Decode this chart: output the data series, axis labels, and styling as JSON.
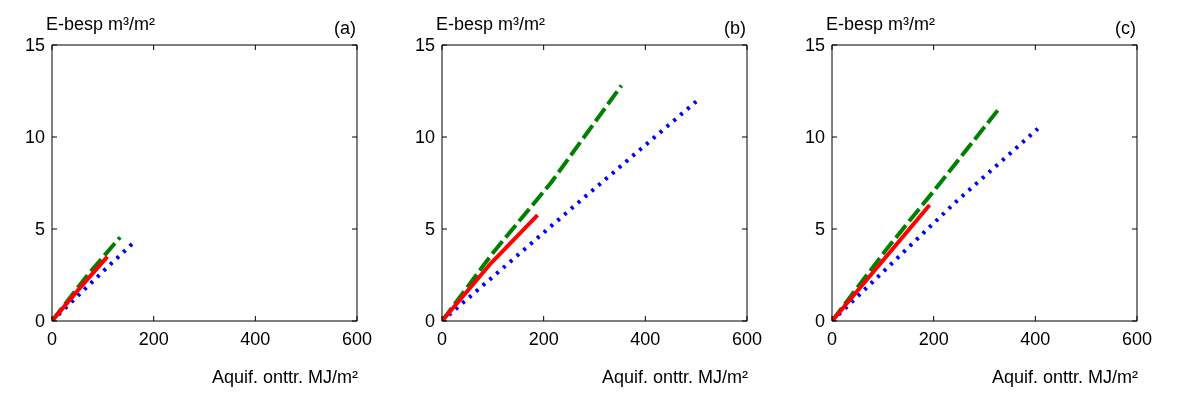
{
  "chart_data": [
    {
      "type": "line",
      "title": "(a)",
      "xlabel": "Aquif. onttr. MJ/m²",
      "ylabel": "E-besp m³/m²",
      "xlim": [
        0,
        600
      ],
      "ylim": [
        0,
        15
      ],
      "xticks": [
        0,
        200,
        400,
        600
      ],
      "yticks": [
        0,
        5,
        10,
        15
      ],
      "series": [
        {
          "color": "#0000ff",
          "line_style": "dotted",
          "x": [
            0,
            108,
            162
          ],
          "values": [
            0,
            2.9,
            4.3
          ]
        },
        {
          "color": "#008000",
          "line_style": "dashed",
          "x": [
            0,
            70,
            134
          ],
          "values": [
            0,
            2.5,
            4.55
          ]
        },
        {
          "color": "#ff0000",
          "line_style": "solid",
          "x": [
            0,
            55,
            109
          ],
          "values": [
            0,
            1.8,
            3.5
          ]
        }
      ]
    },
    {
      "type": "line",
      "title": "(b)",
      "xlabel": "Aquif. onttr. MJ/m²",
      "ylabel": "E-besp m³/m²",
      "xlim": [
        0,
        600
      ],
      "ylim": [
        0,
        15
      ],
      "xticks": [
        0,
        200,
        400,
        600
      ],
      "yticks": [
        0,
        5,
        10,
        15
      ],
      "series": [
        {
          "color": "#0000ff",
          "line_style": "dotted",
          "x": [
            0,
            254,
            503
          ],
          "values": [
            0,
            6.1,
            12.0
          ]
        },
        {
          "color": "#008000",
          "line_style": "dashed",
          "x": [
            0,
            100,
            214,
            353
          ],
          "values": [
            0,
            3.7,
            7.5,
            12.8
          ]
        },
        {
          "color": "#ff0000",
          "line_style": "solid",
          "x": [
            0,
            95,
            188
          ],
          "values": [
            0,
            3.1,
            5.75
          ]
        }
      ]
    },
    {
      "type": "line",
      "title": "(c)",
      "xlabel": "Aquif. onttr. MJ/m²",
      "ylabel": "E-besp m³/m²",
      "xlim": [
        0,
        600
      ],
      "ylim": [
        0,
        15
      ],
      "xticks": [
        0,
        200,
        400,
        600
      ],
      "yticks": [
        0,
        5,
        10,
        15
      ],
      "series": [
        {
          "color": "#0000ff",
          "line_style": "dotted",
          "x": [
            0,
            243,
            405
          ],
          "values": [
            0,
            6.46,
            10.45
          ]
        },
        {
          "color": "#008000",
          "line_style": "dashed",
          "x": [
            0,
            110,
            210,
            326
          ],
          "values": [
            0,
            4.0,
            7.4,
            11.45
          ]
        },
        {
          "color": "#ff0000",
          "line_style": "solid",
          "x": [
            0,
            192
          ],
          "values": [
            0,
            6.3
          ]
        }
      ]
    }
  ]
}
